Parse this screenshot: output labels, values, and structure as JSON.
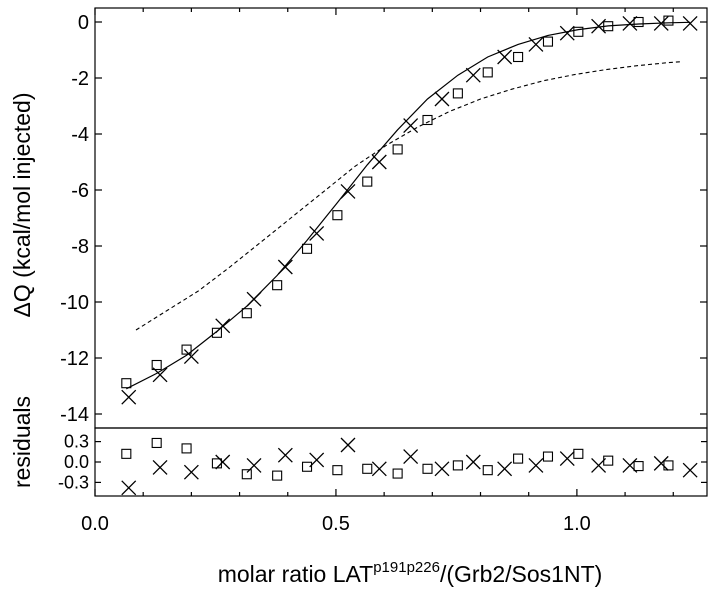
{
  "chart_data": {
    "type": "scatter",
    "xlabel_main": "molar ratio LAT",
    "xlabel_superscript": "p191p226",
    "xlabel_tail": "/(Grb2/Sos1NT)",
    "ylabel": "ΔQ (kcal/mol injected)",
    "residuals_label": "residuals",
    "xlim": [
      0.0,
      1.27
    ],
    "ylim": [
      -14.5,
      0.5
    ],
    "residuals_ylim": [
      -0.5,
      0.5
    ],
    "x_ticks": [
      0.0,
      0.5,
      1.0
    ],
    "x_tick_labels": [
      "0.0",
      "0.5",
      "1.0"
    ],
    "y_ticks": [
      0,
      -2,
      -4,
      -6,
      -8,
      -10,
      -12,
      -14
    ],
    "y_tick_labels": [
      "0",
      "-2",
      "-4",
      "-6",
      "-8",
      "-10",
      "-12",
      "-14"
    ],
    "residual_ticks": [
      0.3,
      0.0,
      -0.3
    ],
    "residual_tick_labels": [
      "0.3",
      "0.0",
      "-0.3"
    ],
    "series": [
      {
        "marker": "square",
        "x": [
          0.065,
          0.128,
          0.19,
          0.253,
          0.315,
          0.378,
          0.44,
          0.503,
          0.565,
          0.628,
          0.69,
          0.753,
          0.815,
          0.878,
          0.94,
          1.003,
          1.065,
          1.128,
          1.19
        ],
        "y": [
          -12.9,
          -12.25,
          -11.7,
          -11.1,
          -10.4,
          -9.4,
          -8.1,
          -6.9,
          -5.7,
          -4.55,
          -3.5,
          -2.55,
          -1.8,
          -1.25,
          -0.7,
          -0.35,
          -0.15,
          0.0,
          0.05
        ],
        "residuals": [
          0.12,
          0.28,
          0.2,
          -0.02,
          -0.18,
          -0.2,
          -0.07,
          -0.12,
          -0.1,
          -0.17,
          -0.1,
          -0.05,
          -0.12,
          0.05,
          0.08,
          0.12,
          0.02,
          -0.06,
          -0.05
        ]
      },
      {
        "marker": "x",
        "x": [
          0.07,
          0.135,
          0.2,
          0.265,
          0.33,
          0.395,
          0.46,
          0.525,
          0.59,
          0.655,
          0.72,
          0.785,
          0.85,
          0.915,
          0.98,
          1.045,
          1.11,
          1.175,
          1.235
        ],
        "y": [
          -13.4,
          -12.6,
          -11.95,
          -10.85,
          -9.9,
          -8.75,
          -7.55,
          -6.05,
          -5.0,
          -3.7,
          -2.75,
          -1.9,
          -1.25,
          -0.8,
          -0.4,
          -0.15,
          -0.05,
          -0.05,
          -0.05
        ],
        "residuals": [
          -0.38,
          -0.08,
          -0.15,
          0.0,
          -0.05,
          0.1,
          0.03,
          0.25,
          -0.1,
          0.08,
          -0.1,
          0.0,
          -0.1,
          -0.05,
          0.05,
          -0.05,
          -0.05,
          -0.02,
          -0.12
        ]
      }
    ],
    "fit_curve": {
      "style": "solid",
      "x": [
        0.065,
        0.128,
        0.19,
        0.253,
        0.315,
        0.378,
        0.44,
        0.503,
        0.565,
        0.628,
        0.69,
        0.753,
        0.815,
        0.878,
        0.94,
        1.003,
        1.065,
        1.128,
        1.19,
        1.235
      ],
      "y": [
        -13.1,
        -12.55,
        -11.9,
        -11.05,
        -10.15,
        -9.05,
        -7.8,
        -6.45,
        -5.1,
        -3.85,
        -2.75,
        -1.9,
        -1.25,
        -0.8,
        -0.48,
        -0.27,
        -0.14,
        -0.07,
        -0.03,
        -0.01
      ]
    },
    "dashed_curve": {
      "style": "dashed",
      "x": [
        0.085,
        0.15,
        0.215,
        0.28,
        0.345,
        0.41,
        0.475,
        0.54,
        0.605,
        0.67,
        0.735,
        0.8,
        0.865,
        0.93,
        0.995,
        1.06,
        1.125,
        1.19,
        1.215
      ],
      "y": [
        -11.0,
        -10.3,
        -9.6,
        -8.75,
        -7.85,
        -6.95,
        -6.05,
        -5.15,
        -4.4,
        -3.75,
        -3.2,
        -2.75,
        -2.4,
        -2.1,
        -1.88,
        -1.7,
        -1.56,
        -1.45,
        -1.42
      ]
    }
  }
}
